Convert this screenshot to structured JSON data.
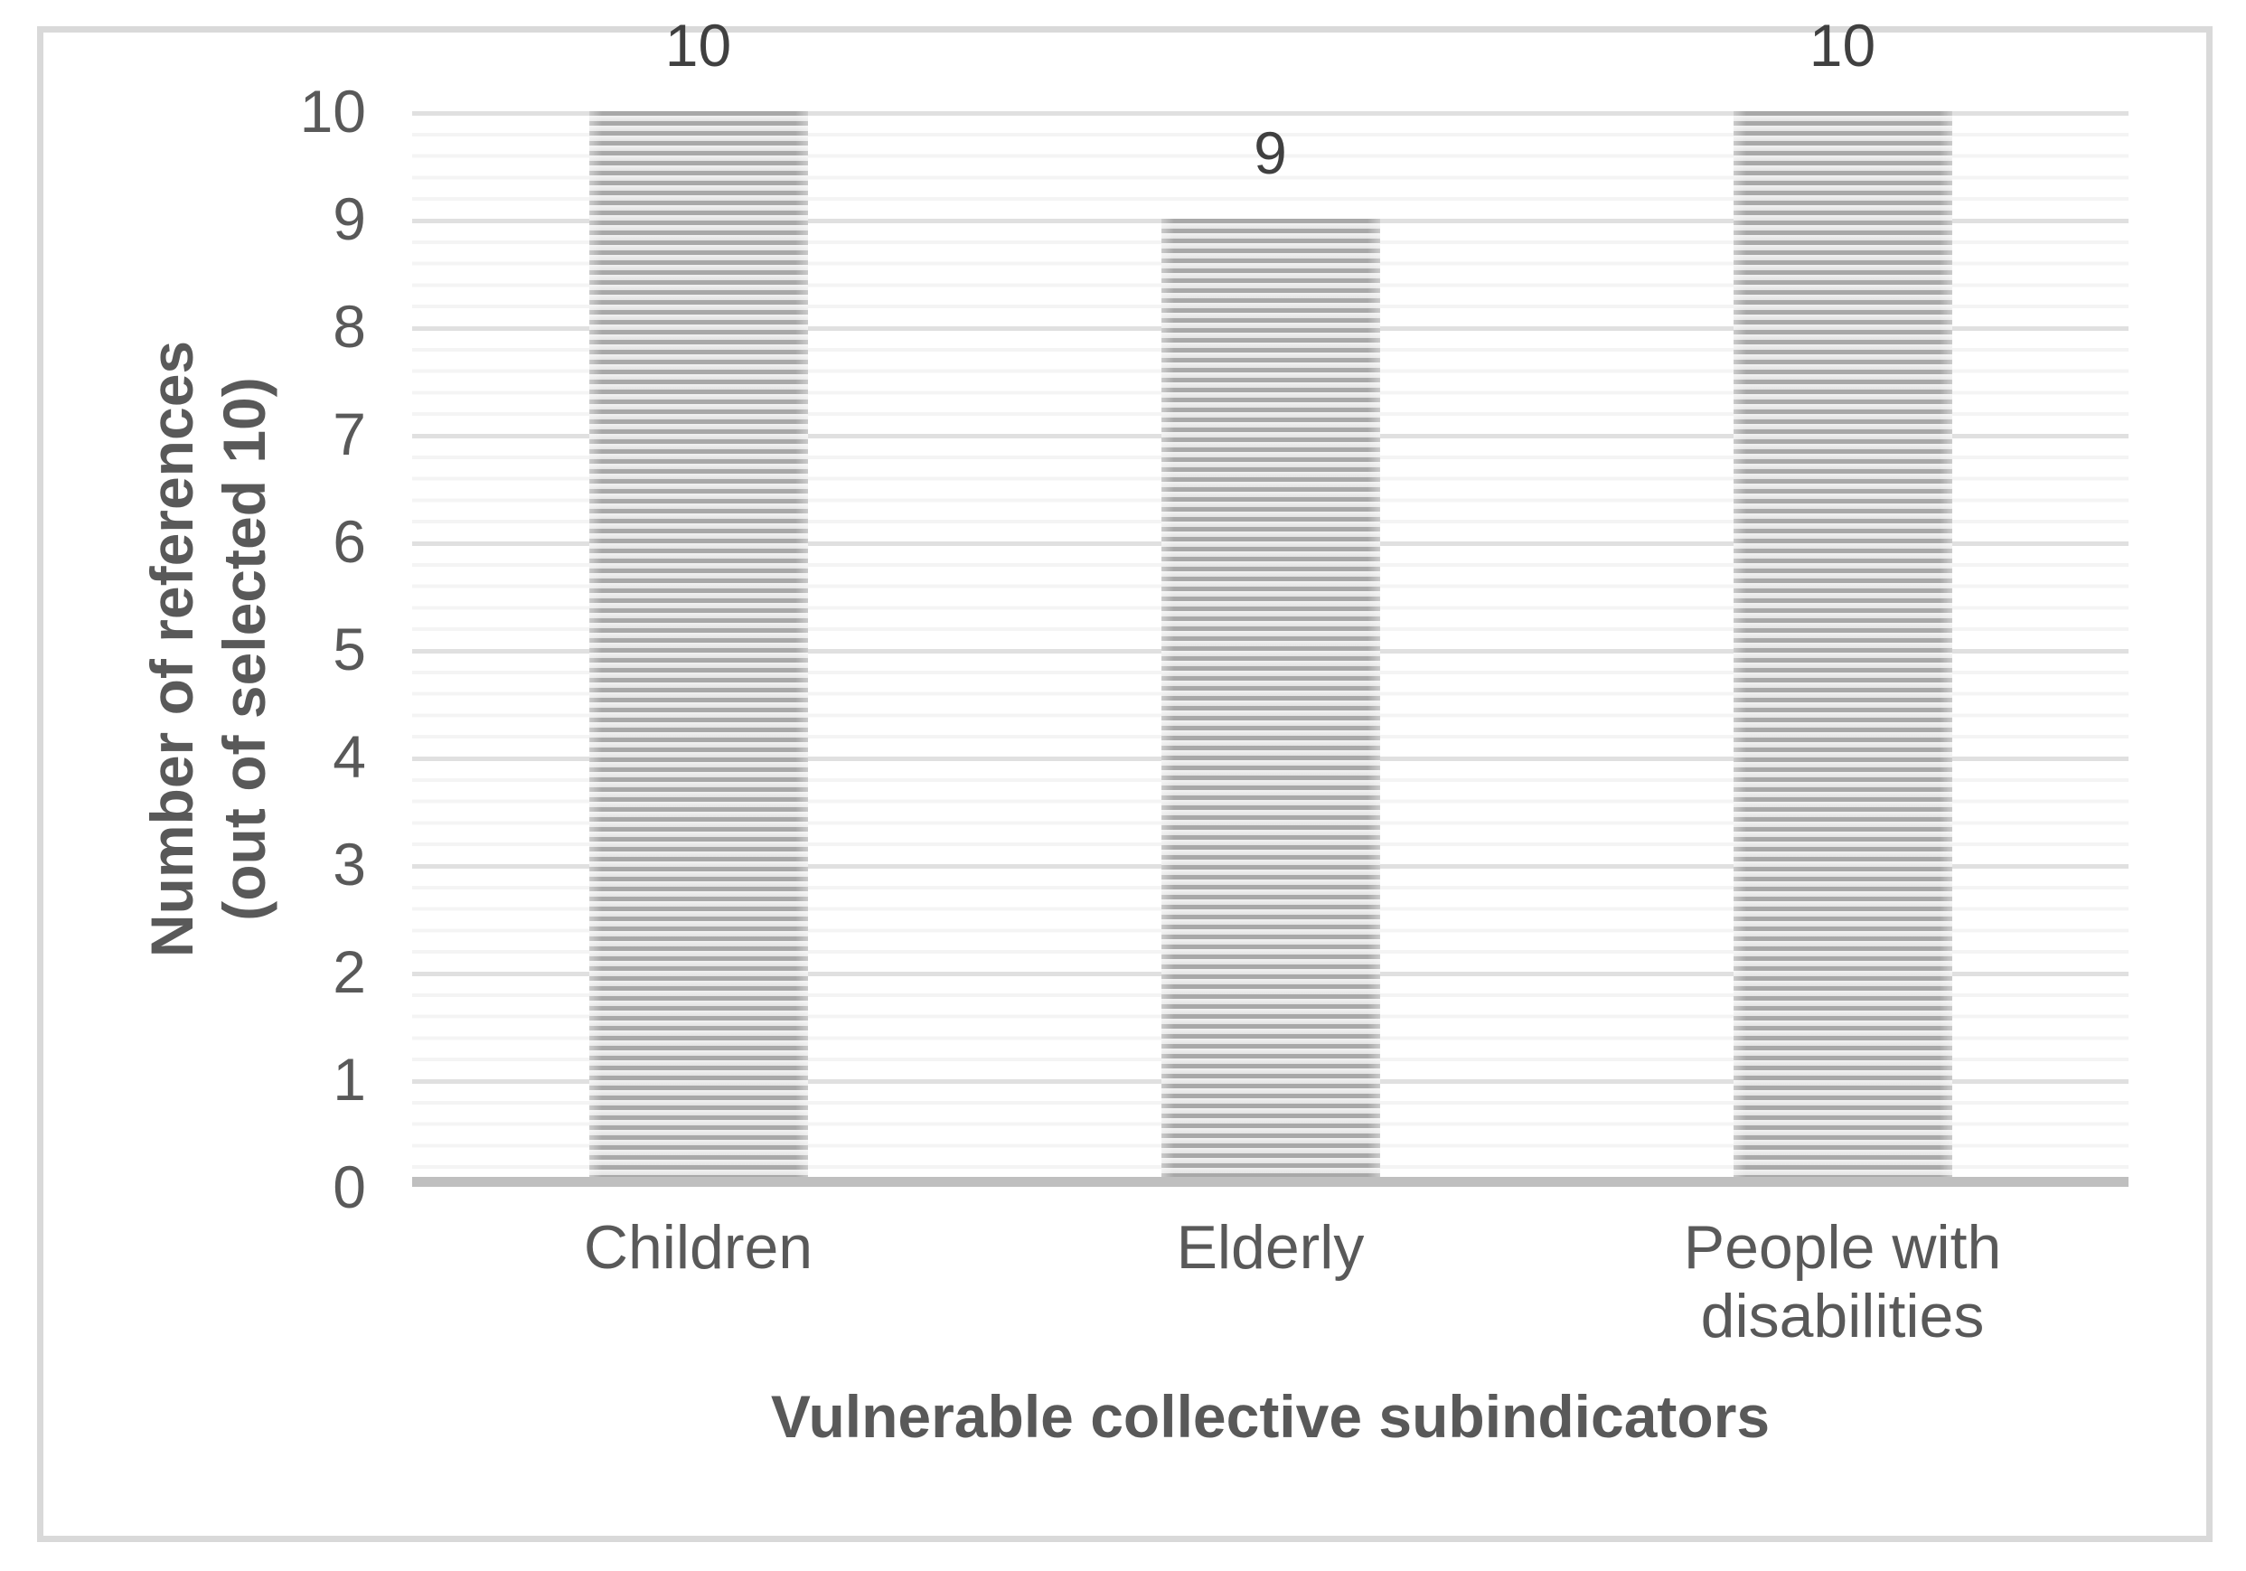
{
  "figure": {
    "background_color": "#ffffff",
    "border_color": "#d9d9d9"
  },
  "chart_data": {
    "type": "bar",
    "title": "",
    "categories": [
      "Children",
      "Elderly",
      "People with disabilities"
    ],
    "values": [
      10,
      9,
      10
    ],
    "data_labels": [
      "10",
      "9",
      "10"
    ],
    "xlabel": "Vulnerable collective subindicators",
    "ylabel": "Number of references (out of selected 10)",
    "ylabel_lines": [
      "Number of references",
      "(out of selected 10)"
    ],
    "ylim": [
      0,
      10
    ],
    "yticks": [
      0,
      1,
      2,
      3,
      4,
      5,
      6,
      7,
      8,
      9,
      10
    ],
    "minor_grid_interval": 0.2,
    "grid": "horizontal major and minor gridlines, no vertical gridlines",
    "legend": "none",
    "bar_fill_pattern": "horizontal stripes",
    "bar_stripe_dark_color": "#a8a8a8",
    "bar_stripe_light_color": "#ededed",
    "major_grid_color": "#e0e0e0",
    "minor_grid_color": "#f4f4f4",
    "axis_line_color": "#bfbfbf",
    "axis_text_color": "#595959",
    "data_label_color": "#404040"
  }
}
